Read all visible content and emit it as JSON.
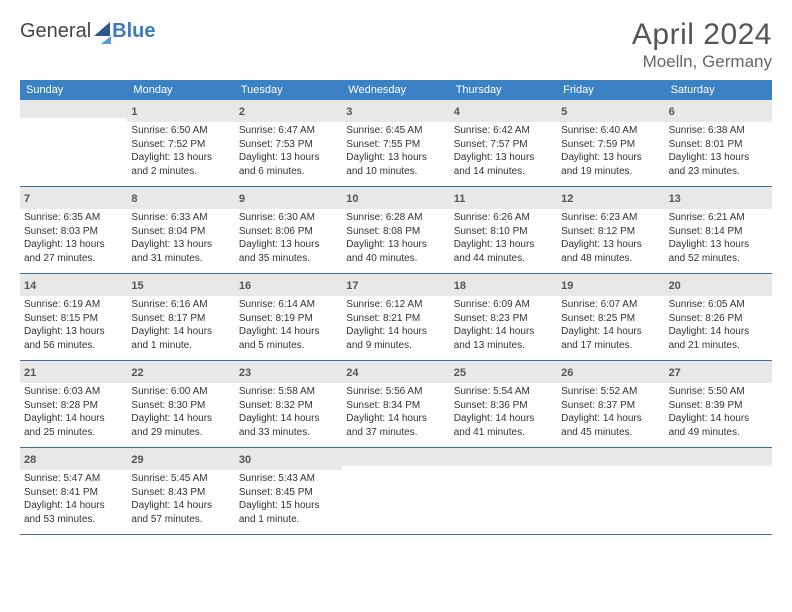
{
  "logo": {
    "general": "General",
    "blue": "Blue"
  },
  "title": "April 2024",
  "location": "Moelln, Germany",
  "colors": {
    "header_bg": "#3b82c4",
    "header_text": "#ffffff",
    "daybar_bg": "#e8e8e8",
    "rule": "#3b6fa0",
    "text": "#333333",
    "logo_blue": "#3b7bbf"
  },
  "weekdays": [
    "Sunday",
    "Monday",
    "Tuesday",
    "Wednesday",
    "Thursday",
    "Friday",
    "Saturday"
  ],
  "weeks": [
    [
      null,
      {
        "n": "1",
        "sr": "Sunrise: 6:50 AM",
        "ss": "Sunset: 7:52 PM",
        "d1": "Daylight: 13 hours",
        "d2": "and 2 minutes."
      },
      {
        "n": "2",
        "sr": "Sunrise: 6:47 AM",
        "ss": "Sunset: 7:53 PM",
        "d1": "Daylight: 13 hours",
        "d2": "and 6 minutes."
      },
      {
        "n": "3",
        "sr": "Sunrise: 6:45 AM",
        "ss": "Sunset: 7:55 PM",
        "d1": "Daylight: 13 hours",
        "d2": "and 10 minutes."
      },
      {
        "n": "4",
        "sr": "Sunrise: 6:42 AM",
        "ss": "Sunset: 7:57 PM",
        "d1": "Daylight: 13 hours",
        "d2": "and 14 minutes."
      },
      {
        "n": "5",
        "sr": "Sunrise: 6:40 AM",
        "ss": "Sunset: 7:59 PM",
        "d1": "Daylight: 13 hours",
        "d2": "and 19 minutes."
      },
      {
        "n": "6",
        "sr": "Sunrise: 6:38 AM",
        "ss": "Sunset: 8:01 PM",
        "d1": "Daylight: 13 hours",
        "d2": "and 23 minutes."
      }
    ],
    [
      {
        "n": "7",
        "sr": "Sunrise: 6:35 AM",
        "ss": "Sunset: 8:03 PM",
        "d1": "Daylight: 13 hours",
        "d2": "and 27 minutes."
      },
      {
        "n": "8",
        "sr": "Sunrise: 6:33 AM",
        "ss": "Sunset: 8:04 PM",
        "d1": "Daylight: 13 hours",
        "d2": "and 31 minutes."
      },
      {
        "n": "9",
        "sr": "Sunrise: 6:30 AM",
        "ss": "Sunset: 8:06 PM",
        "d1": "Daylight: 13 hours",
        "d2": "and 35 minutes."
      },
      {
        "n": "10",
        "sr": "Sunrise: 6:28 AM",
        "ss": "Sunset: 8:08 PM",
        "d1": "Daylight: 13 hours",
        "d2": "and 40 minutes."
      },
      {
        "n": "11",
        "sr": "Sunrise: 6:26 AM",
        "ss": "Sunset: 8:10 PM",
        "d1": "Daylight: 13 hours",
        "d2": "and 44 minutes."
      },
      {
        "n": "12",
        "sr": "Sunrise: 6:23 AM",
        "ss": "Sunset: 8:12 PM",
        "d1": "Daylight: 13 hours",
        "d2": "and 48 minutes."
      },
      {
        "n": "13",
        "sr": "Sunrise: 6:21 AM",
        "ss": "Sunset: 8:14 PM",
        "d1": "Daylight: 13 hours",
        "d2": "and 52 minutes."
      }
    ],
    [
      {
        "n": "14",
        "sr": "Sunrise: 6:19 AM",
        "ss": "Sunset: 8:15 PM",
        "d1": "Daylight: 13 hours",
        "d2": "and 56 minutes."
      },
      {
        "n": "15",
        "sr": "Sunrise: 6:16 AM",
        "ss": "Sunset: 8:17 PM",
        "d1": "Daylight: 14 hours",
        "d2": "and 1 minute."
      },
      {
        "n": "16",
        "sr": "Sunrise: 6:14 AM",
        "ss": "Sunset: 8:19 PM",
        "d1": "Daylight: 14 hours",
        "d2": "and 5 minutes."
      },
      {
        "n": "17",
        "sr": "Sunrise: 6:12 AM",
        "ss": "Sunset: 8:21 PM",
        "d1": "Daylight: 14 hours",
        "d2": "and 9 minutes."
      },
      {
        "n": "18",
        "sr": "Sunrise: 6:09 AM",
        "ss": "Sunset: 8:23 PM",
        "d1": "Daylight: 14 hours",
        "d2": "and 13 minutes."
      },
      {
        "n": "19",
        "sr": "Sunrise: 6:07 AM",
        "ss": "Sunset: 8:25 PM",
        "d1": "Daylight: 14 hours",
        "d2": "and 17 minutes."
      },
      {
        "n": "20",
        "sr": "Sunrise: 6:05 AM",
        "ss": "Sunset: 8:26 PM",
        "d1": "Daylight: 14 hours",
        "d2": "and 21 minutes."
      }
    ],
    [
      {
        "n": "21",
        "sr": "Sunrise: 6:03 AM",
        "ss": "Sunset: 8:28 PM",
        "d1": "Daylight: 14 hours",
        "d2": "and 25 minutes."
      },
      {
        "n": "22",
        "sr": "Sunrise: 6:00 AM",
        "ss": "Sunset: 8:30 PM",
        "d1": "Daylight: 14 hours",
        "d2": "and 29 minutes."
      },
      {
        "n": "23",
        "sr": "Sunrise: 5:58 AM",
        "ss": "Sunset: 8:32 PM",
        "d1": "Daylight: 14 hours",
        "d2": "and 33 minutes."
      },
      {
        "n": "24",
        "sr": "Sunrise: 5:56 AM",
        "ss": "Sunset: 8:34 PM",
        "d1": "Daylight: 14 hours",
        "d2": "and 37 minutes."
      },
      {
        "n": "25",
        "sr": "Sunrise: 5:54 AM",
        "ss": "Sunset: 8:36 PM",
        "d1": "Daylight: 14 hours",
        "d2": "and 41 minutes."
      },
      {
        "n": "26",
        "sr": "Sunrise: 5:52 AM",
        "ss": "Sunset: 8:37 PM",
        "d1": "Daylight: 14 hours",
        "d2": "and 45 minutes."
      },
      {
        "n": "27",
        "sr": "Sunrise: 5:50 AM",
        "ss": "Sunset: 8:39 PM",
        "d1": "Daylight: 14 hours",
        "d2": "and 49 minutes."
      }
    ],
    [
      {
        "n": "28",
        "sr": "Sunrise: 5:47 AM",
        "ss": "Sunset: 8:41 PM",
        "d1": "Daylight: 14 hours",
        "d2": "and 53 minutes."
      },
      {
        "n": "29",
        "sr": "Sunrise: 5:45 AM",
        "ss": "Sunset: 8:43 PM",
        "d1": "Daylight: 14 hours",
        "d2": "and 57 minutes."
      },
      {
        "n": "30",
        "sr": "Sunrise: 5:43 AM",
        "ss": "Sunset: 8:45 PM",
        "d1": "Daylight: 15 hours",
        "d2": "and 1 minute."
      },
      null,
      null,
      null,
      null
    ]
  ]
}
